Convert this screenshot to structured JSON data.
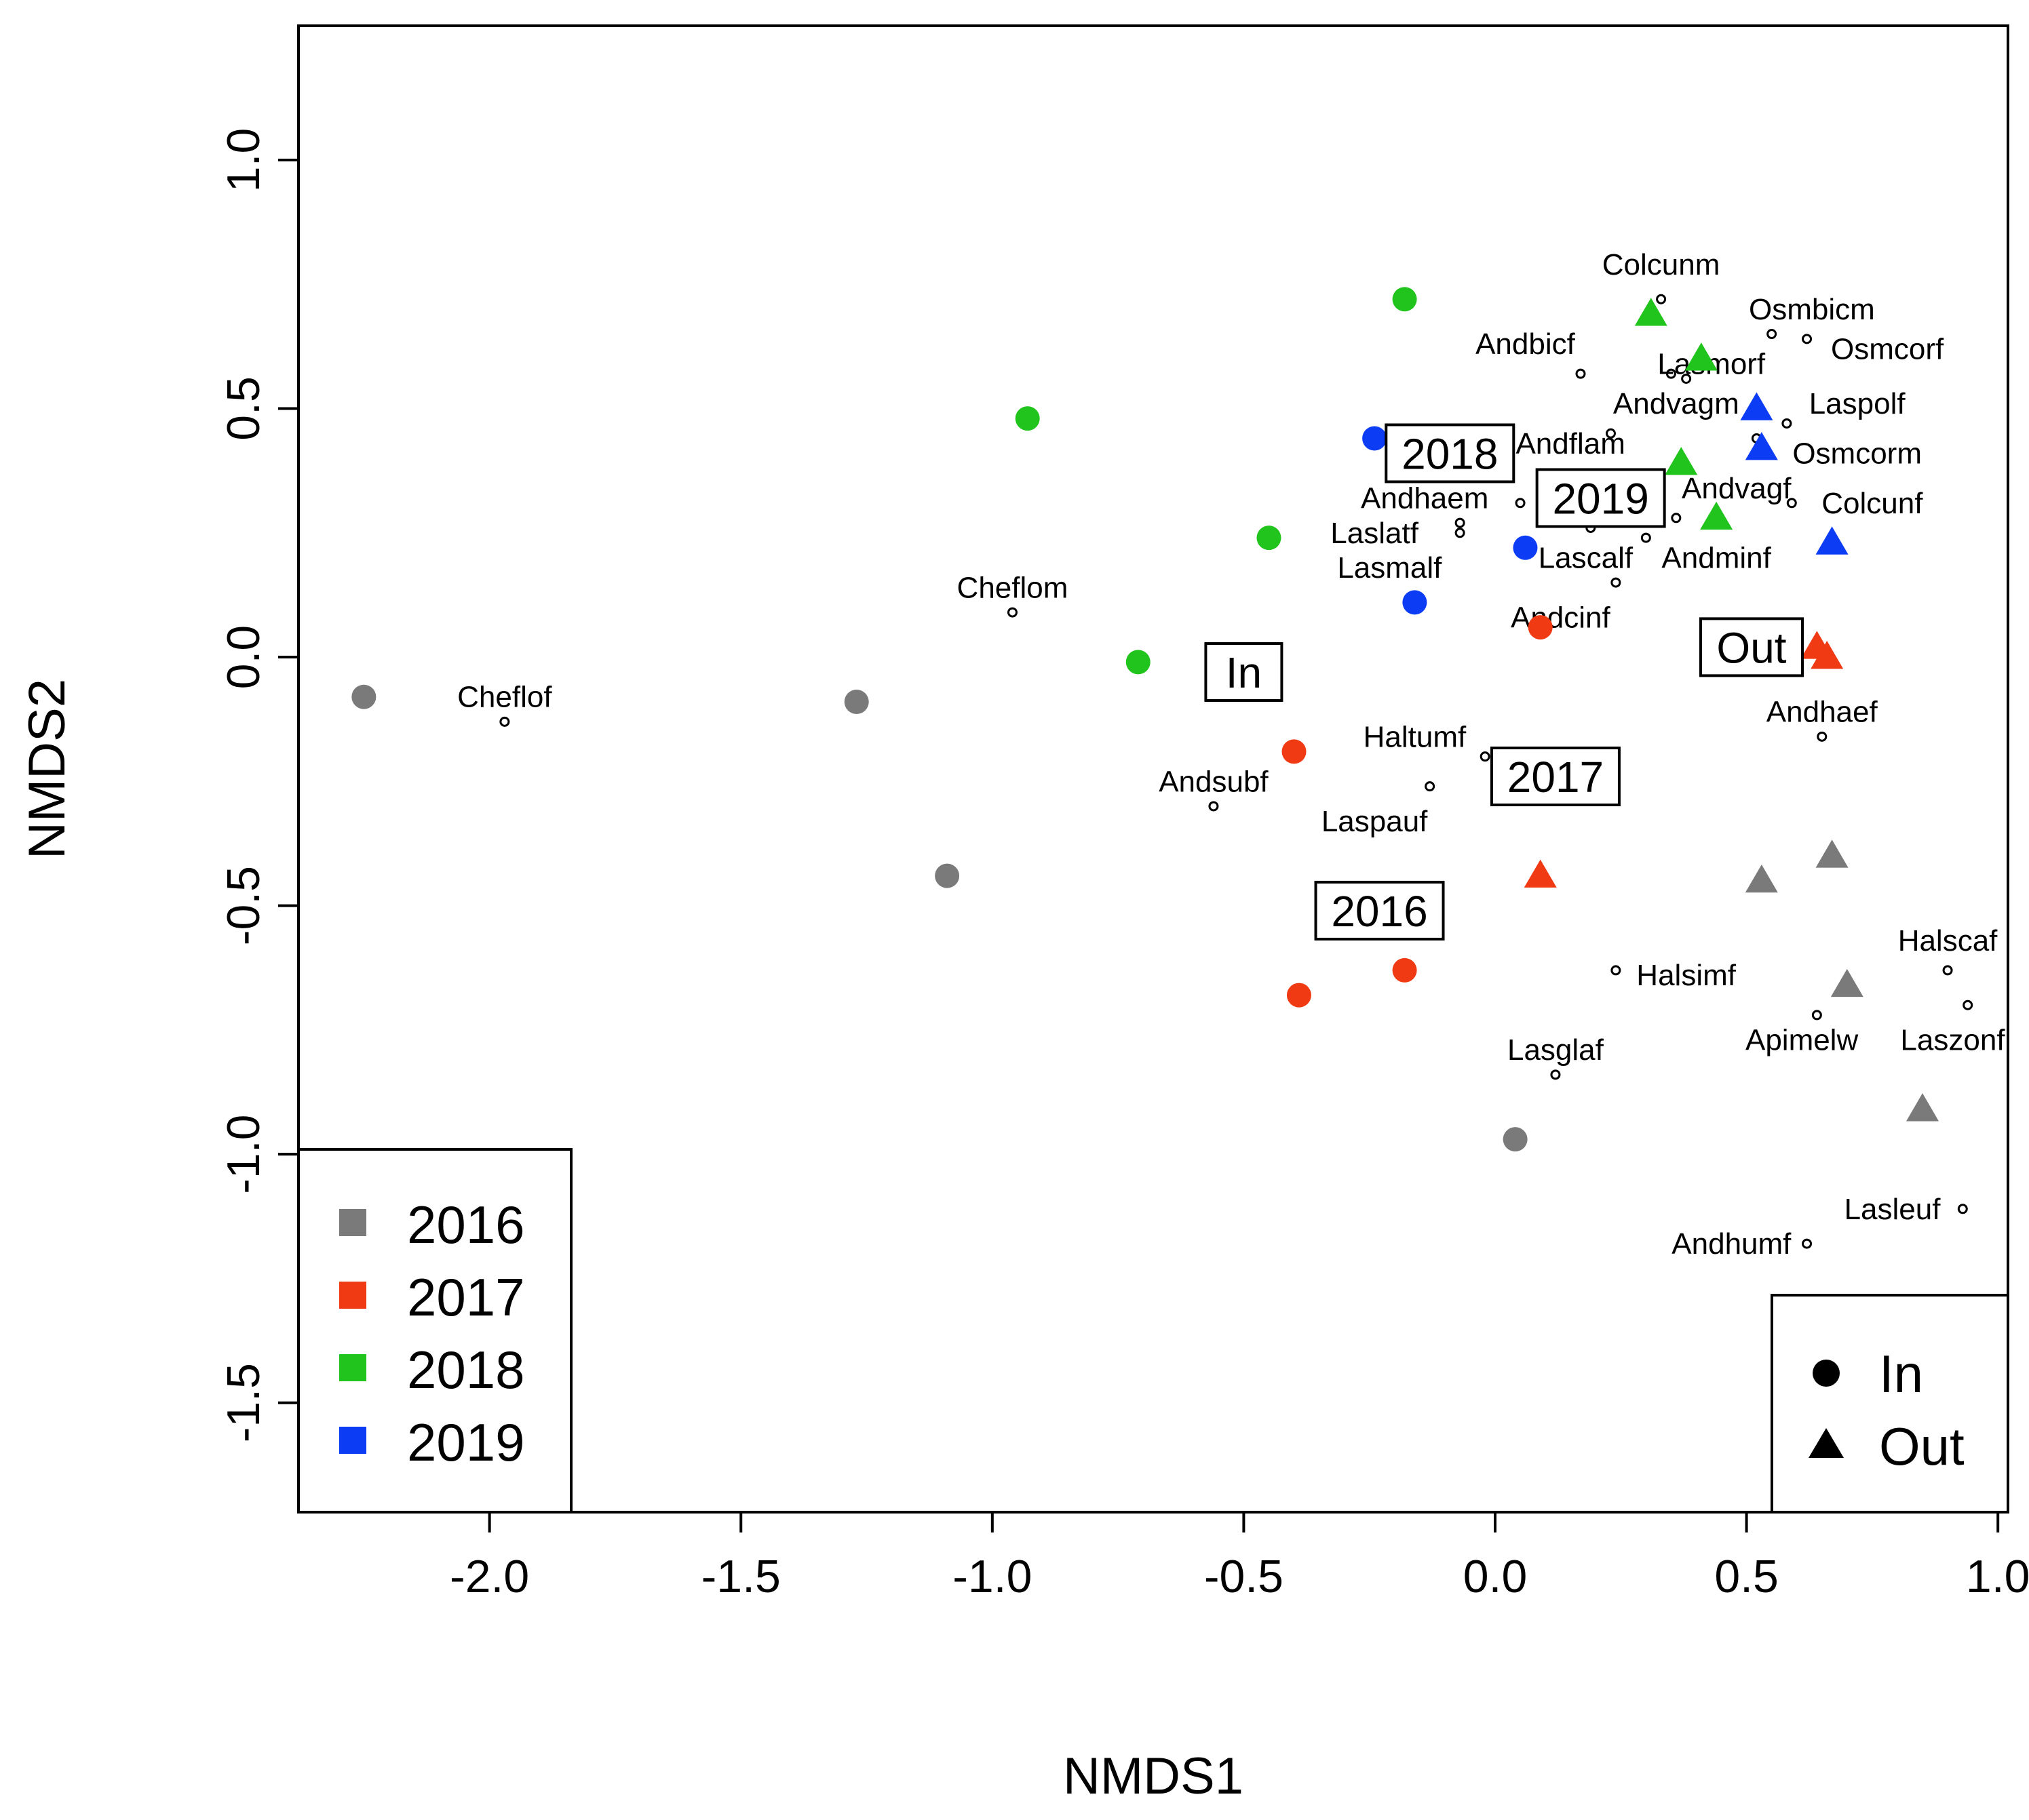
{
  "chart_data": {
    "type": "scatter",
    "title": "",
    "xlabel": "NMDS1",
    "ylabel": "NMDS2",
    "xlim": [
      -2.38,
      1.02
    ],
    "ylim": [
      -1.72,
      1.27
    ],
    "xticks": [
      -2.0,
      -1.5,
      -1.0,
      -0.5,
      0.0,
      0.5,
      1.0
    ],
    "xtick_labels": [
      "-2.0",
      "-1.5",
      "-1.0",
      "-0.5",
      "0.0",
      "0.5",
      "1.0"
    ],
    "yticks": [
      -1.5,
      -1.0,
      -0.5,
      0.0,
      0.5,
      1.0
    ],
    "ytick_labels": [
      "-1.5",
      "-1.0",
      "-0.5",
      "0.0",
      "0.5",
      "1.0"
    ],
    "grid": false,
    "colors": {
      "2016": "#7a7a7a",
      "2017": "#f03a14",
      "2018": "#21c41c",
      "2019": "#0d3cf5"
    },
    "sites": [
      {
        "year": "2016",
        "habitat": "In",
        "x": -2.25,
        "y": -0.08
      },
      {
        "year": "2016",
        "habitat": "In",
        "x": -1.27,
        "y": -0.09
      },
      {
        "year": "2016",
        "habitat": "In",
        "x": -1.09,
        "y": -0.44
      },
      {
        "year": "2016",
        "habitat": "In",
        "x": 0.04,
        "y": -0.97
      },
      {
        "year": "2016",
        "habitat": "Out",
        "x": 0.53,
        "y": -0.45
      },
      {
        "year": "2016",
        "habitat": "Out",
        "x": 0.67,
        "y": -0.4
      },
      {
        "year": "2016",
        "habitat": "Out",
        "x": 0.7,
        "y": -0.66
      },
      {
        "year": "2016",
        "habitat": "Out",
        "x": 0.85,
        "y": -0.91
      },
      {
        "year": "2017",
        "habitat": "In",
        "x": 0.09,
        "y": 0.06
      },
      {
        "year": "2017",
        "habitat": "In",
        "x": -0.4,
        "y": -0.19
      },
      {
        "year": "2017",
        "habitat": "In",
        "x": -0.18,
        "y": -0.63
      },
      {
        "year": "2017",
        "habitat": "In",
        "x": -0.39,
        "y": -0.68
      },
      {
        "year": "2017",
        "habitat": "Out",
        "x": 0.09,
        "y": -0.44
      },
      {
        "year": "2017",
        "habitat": "Out",
        "x": 0.64,
        "y": 0.02
      },
      {
        "year": "2017",
        "habitat": "Out",
        "x": 0.66,
        "y": 0.0
      },
      {
        "year": "2018",
        "habitat": "In",
        "x": -0.18,
        "y": 0.72
      },
      {
        "year": "2018",
        "habitat": "In",
        "x": -0.93,
        "y": 0.48
      },
      {
        "year": "2018",
        "habitat": "In",
        "x": -0.45,
        "y": 0.24
      },
      {
        "year": "2018",
        "habitat": "In",
        "x": -0.71,
        "y": -0.01
      },
      {
        "year": "2018",
        "habitat": "Out",
        "x": 0.31,
        "y": 0.69
      },
      {
        "year": "2018",
        "habitat": "Out",
        "x": 0.41,
        "y": 0.6
      },
      {
        "year": "2018",
        "habitat": "Out",
        "x": 0.37,
        "y": 0.39
      },
      {
        "year": "2018",
        "habitat": "Out",
        "x": 0.44,
        "y": 0.28
      },
      {
        "year": "2019",
        "habitat": "In",
        "x": -0.24,
        "y": 0.44
      },
      {
        "year": "2019",
        "habitat": "In",
        "x": 0.06,
        "y": 0.22
      },
      {
        "year": "2019",
        "habitat": "In",
        "x": -0.16,
        "y": 0.11
      },
      {
        "year": "2019",
        "habitat": "Out",
        "x": 0.52,
        "y": 0.5
      },
      {
        "year": "2019",
        "habitat": "Out",
        "x": 0.53,
        "y": 0.42
      },
      {
        "year": "2019",
        "habitat": "Out",
        "x": 0.67,
        "y": 0.23
      }
    ],
    "species": [
      {
        "label": "Colcunm",
        "x": 0.33,
        "y": 0.72,
        "lx": 0.33,
        "ly": 0.79,
        "anchor": "middle"
      },
      {
        "label": "Osmbicm",
        "x": 0.55,
        "y": 0.65,
        "lx": 0.63,
        "ly": 0.7,
        "anchor": "middle"
      },
      {
        "label": "Osmcorf",
        "x": 0.62,
        "y": 0.64,
        "lx": 0.78,
        "ly": 0.62,
        "anchor": "middle"
      },
      {
        "label": "Andbicf",
        "x": 0.17,
        "y": 0.57,
        "lx": 0.06,
        "ly": 0.63,
        "anchor": "middle"
      },
      {
        "label": "Lasmorf",
        "x": 0.35,
        "y": 0.57,
        "lx": 0.43,
        "ly": 0.59,
        "anchor": "middle"
      },
      {
        "label": "Andvagm",
        "x": 0.38,
        "y": 0.56,
        "lx": 0.36,
        "ly": 0.51,
        "anchor": "middle"
      },
      {
        "label": "Laspolf",
        "x": 0.58,
        "y": 0.47,
        "lx": 0.72,
        "ly": 0.51,
        "anchor": "middle"
      },
      {
        "label": "Andflam",
        "x": 0.23,
        "y": 0.45,
        "lx": 0.15,
        "ly": 0.43,
        "anchor": "middle"
      },
      {
        "label": "Osmcorm",
        "x": 0.52,
        "y": 0.44,
        "lx": 0.72,
        "ly": 0.41,
        "anchor": "middle"
      },
      {
        "label": "Andhaem",
        "x": 0.05,
        "y": 0.31,
        "lx": -0.14,
        "ly": 0.32,
        "anchor": "middle"
      },
      {
        "label": "Andvagf",
        "x": 0.36,
        "y": 0.28,
        "lx": 0.48,
        "ly": 0.34,
        "anchor": "middle"
      },
      {
        "label": "Colcunf",
        "x": 0.59,
        "y": 0.31,
        "lx": 0.75,
        "ly": 0.31,
        "anchor": "middle"
      },
      {
        "label": "Laslatf",
        "x": -0.07,
        "y": 0.27,
        "lx": -0.24,
        "ly": 0.25,
        "anchor": "middle"
      },
      {
        "label": "Lascalf",
        "x": 0.19,
        "y": 0.26,
        "lx": 0.18,
        "ly": 0.2,
        "anchor": "middle"
      },
      {
        "label": "Andminf",
        "x": 0.3,
        "y": 0.24,
        "lx": 0.44,
        "ly": 0.2,
        "anchor": "middle"
      },
      {
        "label": "Lasmalf",
        "x": -0.07,
        "y": 0.25,
        "lx": -0.21,
        "ly": 0.18,
        "anchor": "middle"
      },
      {
        "label": "Andcinf",
        "x": 0.24,
        "y": 0.15,
        "lx": 0.13,
        "ly": 0.08,
        "anchor": "middle"
      },
      {
        "label": "Cheflom",
        "x": -0.96,
        "y": 0.09,
        "lx": -0.96,
        "ly": 0.14,
        "anchor": "middle"
      },
      {
        "label": "Cheflof",
        "x": -1.97,
        "y": -0.13,
        "lx": -1.97,
        "ly": -0.08,
        "anchor": "middle"
      },
      {
        "label": "Andhaef",
        "x": 0.65,
        "y": -0.16,
        "lx": 0.65,
        "ly": -0.11,
        "anchor": "middle"
      },
      {
        "label": "Haltumf",
        "x": -0.02,
        "y": -0.2,
        "lx": -0.16,
        "ly": -0.16,
        "anchor": "middle"
      },
      {
        "label": "Andsubf",
        "x": -0.56,
        "y": -0.3,
        "lx": -0.56,
        "ly": -0.25,
        "anchor": "middle"
      },
      {
        "label": "Laspauf",
        "x": -0.13,
        "y": -0.26,
        "lx": -0.24,
        "ly": -0.33,
        "anchor": "middle"
      },
      {
        "label": "Halscaf",
        "x": 0.9,
        "y": -0.63,
        "lx": 0.9,
        "ly": -0.57,
        "anchor": "middle"
      },
      {
        "label": "Halsimf",
        "x": 0.24,
        "y": -0.63,
        "lx": 0.38,
        "ly": -0.64,
        "anchor": "middle"
      },
      {
        "label": "Laszonf",
        "x": 0.94,
        "y": -0.7,
        "lx": 0.91,
        "ly": -0.77,
        "anchor": "middle"
      },
      {
        "label": "Apimelw",
        "x": 0.64,
        "y": -0.72,
        "lx": 0.61,
        "ly": -0.77,
        "anchor": "middle"
      },
      {
        "label": "Lasglaf",
        "x": 0.12,
        "y": -0.84,
        "lx": 0.12,
        "ly": -0.79,
        "anchor": "middle"
      },
      {
        "label": "Lasleuf",
        "x": 0.93,
        "y": -1.11,
        "lx": 0.79,
        "ly": -1.11,
        "anchor": "middle"
      },
      {
        "label": "Andhumf",
        "x": 0.62,
        "y": -1.18,
        "lx": 0.47,
        "ly": -1.18,
        "anchor": "middle"
      }
    ],
    "centroids": [
      {
        "label": "2018",
        "x": -0.09,
        "y": 0.41
      },
      {
        "label": "2019",
        "x": 0.21,
        "y": 0.32
      },
      {
        "label": "In",
        "x": -0.5,
        "y": -0.03
      },
      {
        "label": "Out",
        "x": 0.51,
        "y": 0.02
      },
      {
        "label": "2017",
        "x": 0.12,
        "y": -0.24
      },
      {
        "label": "2016",
        "x": -0.23,
        "y": -0.51
      }
    ],
    "legend_years": {
      "position": "bottom-left",
      "entries": [
        {
          "label": "2016",
          "color": "#7a7a7a"
        },
        {
          "label": "2017",
          "color": "#f03a14"
        },
        {
          "label": "2018",
          "color": "#21c41c"
        },
        {
          "label": "2019",
          "color": "#0d3cf5"
        }
      ]
    },
    "legend_habitat": {
      "position": "bottom-right",
      "entries": [
        {
          "label": "In",
          "shape": "circle"
        },
        {
          "label": "Out",
          "shape": "triangle"
        }
      ]
    }
  }
}
